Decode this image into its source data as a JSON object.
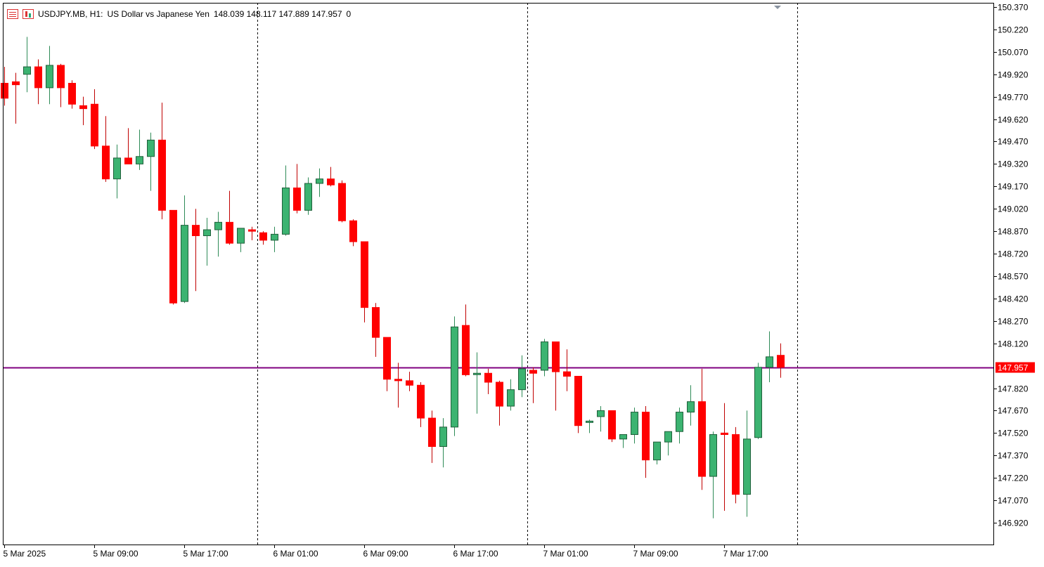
{
  "header": {
    "symbol": "USDJPY.MB, H1:",
    "description": "US Dollar vs Japanese Yen",
    "ohlc": "148.039 148.117 147.889 147.957",
    "volume": "0",
    "icons": [
      "quote-list-icon",
      "chart-bars-icon"
    ]
  },
  "colors": {
    "bull": "#3cb371",
    "bear": "#ff0000",
    "price_line": "#800080",
    "price_label_bg": "#ff0000",
    "grid_separator": "#000000"
  },
  "chart_data": {
    "type": "candlestick",
    "timeframe": "H1",
    "last_price": 147.957,
    "last_price_label": "147.957",
    "ylim": [
      146.83,
      150.37
    ],
    "y_ticks": [
      "150.370",
      "150.220",
      "150.070",
      "149.920",
      "149.770",
      "149.620",
      "149.470",
      "149.320",
      "149.170",
      "149.020",
      "148.870",
      "148.720",
      "148.570",
      "148.420",
      "148.270",
      "148.120",
      "147.957",
      "147.820",
      "147.670",
      "147.520",
      "147.370",
      "147.220",
      "147.070",
      "146.920"
    ],
    "x_labels": [
      {
        "bar": 0,
        "label": "5 Mar 2025"
      },
      {
        "bar": 8,
        "label": "5 Mar 09:00"
      },
      {
        "bar": 16,
        "label": "5 Mar 17:00"
      },
      {
        "bar": 24,
        "label": "6 Mar 01:00"
      },
      {
        "bar": 32,
        "label": "6 Mar 09:00"
      },
      {
        "bar": 40,
        "label": "6 Mar 17:00"
      },
      {
        "bar": 48,
        "label": "7 Mar 01:00"
      },
      {
        "bar": 56,
        "label": "7 Mar 09:00"
      },
      {
        "bar": 64,
        "label": "7 Mar 17:00"
      }
    ],
    "day_separators_after_bar": [
      22.5,
      46.5,
      70.5
    ],
    "candles": [
      [
        149.86,
        149.97,
        149.71,
        149.76
      ],
      [
        149.87,
        149.93,
        149.59,
        149.85
      ],
      [
        149.92,
        150.17,
        149.8,
        149.97
      ],
      [
        149.97,
        150.02,
        149.72,
        149.83
      ],
      [
        149.83,
        150.11,
        149.72,
        149.98
      ],
      [
        149.98,
        149.99,
        149.7,
        149.83
      ],
      [
        149.86,
        149.88,
        149.69,
        149.72
      ],
      [
        149.71,
        149.77,
        149.58,
        149.69
      ],
      [
        149.72,
        149.82,
        149.42,
        149.44
      ],
      [
        149.44,
        149.64,
        149.2,
        149.22
      ],
      [
        149.22,
        149.45,
        149.09,
        149.36
      ],
      [
        149.36,
        149.56,
        149.32,
        149.32
      ],
      [
        149.32,
        149.55,
        149.28,
        149.37
      ],
      [
        149.37,
        149.53,
        149.14,
        149.48
      ],
      [
        149.48,
        149.73,
        148.95,
        149.01
      ],
      [
        149.01,
        149.01,
        148.38,
        148.39
      ],
      [
        148.4,
        149.11,
        148.39,
        148.91
      ],
      [
        148.91,
        149.02,
        148.47,
        148.84
      ],
      [
        148.84,
        148.96,
        148.64,
        148.88
      ],
      [
        148.88,
        149.0,
        148.7,
        148.93
      ],
      [
        148.93,
        149.14,
        148.78,
        148.79
      ],
      [
        148.79,
        148.89,
        148.73,
        148.89
      ],
      [
        148.88,
        148.9,
        148.81,
        148.87
      ],
      [
        148.86,
        148.87,
        148.78,
        148.81
      ],
      [
        148.81,
        148.9,
        148.73,
        148.85
      ],
      [
        148.85,
        149.31,
        148.84,
        149.16
      ],
      [
        149.16,
        149.32,
        148.99,
        149.01
      ],
      [
        149.01,
        149.23,
        148.98,
        149.19
      ],
      [
        149.19,
        149.29,
        149.1,
        149.22
      ],
      [
        149.22,
        149.3,
        149.17,
        149.18
      ],
      [
        149.19,
        149.21,
        148.93,
        148.94
      ],
      [
        148.94,
        148.95,
        148.77,
        148.8
      ],
      [
        148.8,
        148.8,
        148.26,
        148.36
      ],
      [
        148.36,
        148.39,
        148.03,
        148.16
      ],
      [
        148.16,
        148.16,
        147.8,
        147.88
      ],
      [
        147.88,
        147.99,
        147.69,
        147.87
      ],
      [
        147.87,
        147.93,
        147.8,
        147.84
      ],
      [
        147.84,
        147.86,
        147.56,
        147.62
      ],
      [
        147.62,
        147.67,
        147.32,
        147.43
      ],
      [
        147.43,
        147.62,
        147.29,
        147.56
      ],
      [
        147.56,
        148.3,
        147.5,
        148.23
      ],
      [
        148.24,
        148.38,
        147.9,
        147.91
      ],
      [
        147.92,
        148.06,
        147.65,
        147.92
      ],
      [
        147.92,
        147.95,
        147.78,
        147.86
      ],
      [
        147.86,
        147.87,
        147.57,
        147.7
      ],
      [
        147.7,
        147.88,
        147.67,
        147.81
      ],
      [
        147.81,
        148.04,
        147.76,
        147.95
      ],
      [
        147.94,
        147.96,
        147.72,
        147.92
      ],
      [
        147.94,
        148.15,
        147.9,
        148.13
      ],
      [
        148.13,
        148.13,
        147.67,
        147.93
      ],
      [
        147.93,
        148.08,
        147.8,
        147.9
      ],
      [
        147.9,
        147.9,
        147.52,
        147.57
      ],
      [
        147.6,
        147.61,
        147.52,
        147.6
      ],
      [
        147.63,
        147.7,
        147.53,
        147.67
      ],
      [
        147.67,
        147.67,
        147.46,
        147.48
      ],
      [
        147.48,
        147.51,
        147.42,
        147.51
      ],
      [
        147.51,
        147.69,
        147.45,
        147.66
      ],
      [
        147.66,
        147.7,
        147.22,
        147.34
      ],
      [
        147.34,
        147.46,
        147.31,
        147.46
      ],
      [
        147.46,
        147.53,
        147.37,
        147.53
      ],
      [
        147.53,
        147.69,
        147.45,
        147.66
      ],
      [
        147.66,
        147.84,
        147.57,
        147.73
      ],
      [
        147.73,
        147.95,
        147.14,
        147.23
      ],
      [
        147.23,
        147.53,
        146.95,
        147.51
      ],
      [
        147.52,
        147.72,
        147.0,
        147.51
      ],
      [
        147.51,
        147.56,
        147.05,
        147.11
      ],
      [
        147.11,
        147.67,
        146.96,
        147.48
      ],
      [
        147.49,
        147.99,
        147.48,
        147.96
      ],
      [
        147.96,
        148.2,
        147.86,
        148.03
      ],
      [
        148.04,
        148.12,
        147.89,
        147.96
      ]
    ]
  }
}
